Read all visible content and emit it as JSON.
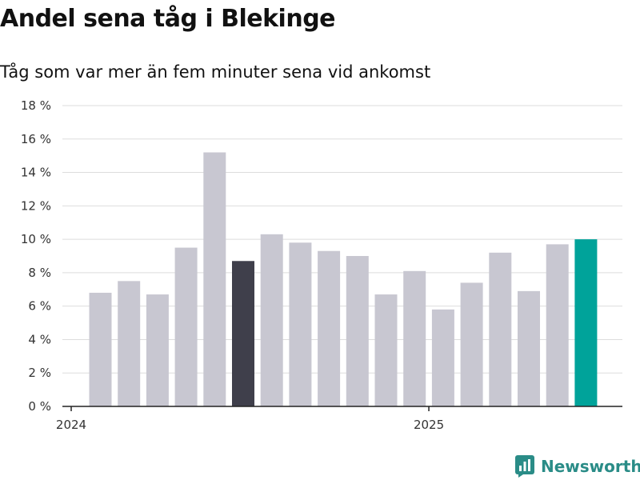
{
  "header": {
    "title": "Andel sena tåg i Blekinge",
    "subtitle": "Tåg som var mer än fem minuter sena vid ankomst"
  },
  "brand": {
    "name": "Newsworthy"
  },
  "colors": {
    "default_bar": "#c8c7d1",
    "highlight_dark": "#3f3f4b",
    "highlight_latest": "#00a39a",
    "grid": "#dddddd"
  },
  "chart_data": {
    "type": "bar",
    "title": "Andel sena tåg i Blekinge",
    "subtitle": "Tåg som var mer än fem minuter sena vid ankomst",
    "xlabel": "",
    "ylabel": "",
    "ylim": [
      0,
      18
    ],
    "y_ticks": [
      0,
      2,
      4,
      6,
      8,
      10,
      12,
      14,
      16,
      18
    ],
    "y_tick_labels": [
      "0 %",
      "2 %",
      "4 %",
      "6 %",
      "8 %",
      "10 %",
      "12 %",
      "14 %",
      "16 %",
      "18 %"
    ],
    "x_tick_labels": [
      {
        "label": "2024",
        "after_bar_index": -1
      },
      {
        "label": "2025",
        "after_bar_index": 11
      }
    ],
    "grid": true,
    "values": [
      6.8,
      7.5,
      6.7,
      9.5,
      15.2,
      8.7,
      10.3,
      9.8,
      9.3,
      9.0,
      6.7,
      8.1,
      5.8,
      7.4,
      9.2,
      6.9,
      9.7,
      10.0
    ],
    "bar_colors": [
      "default",
      "default",
      "default",
      "default",
      "default",
      "dark",
      "default",
      "default",
      "default",
      "default",
      "default",
      "default",
      "default",
      "default",
      "default",
      "default",
      "default",
      "latest"
    ]
  }
}
